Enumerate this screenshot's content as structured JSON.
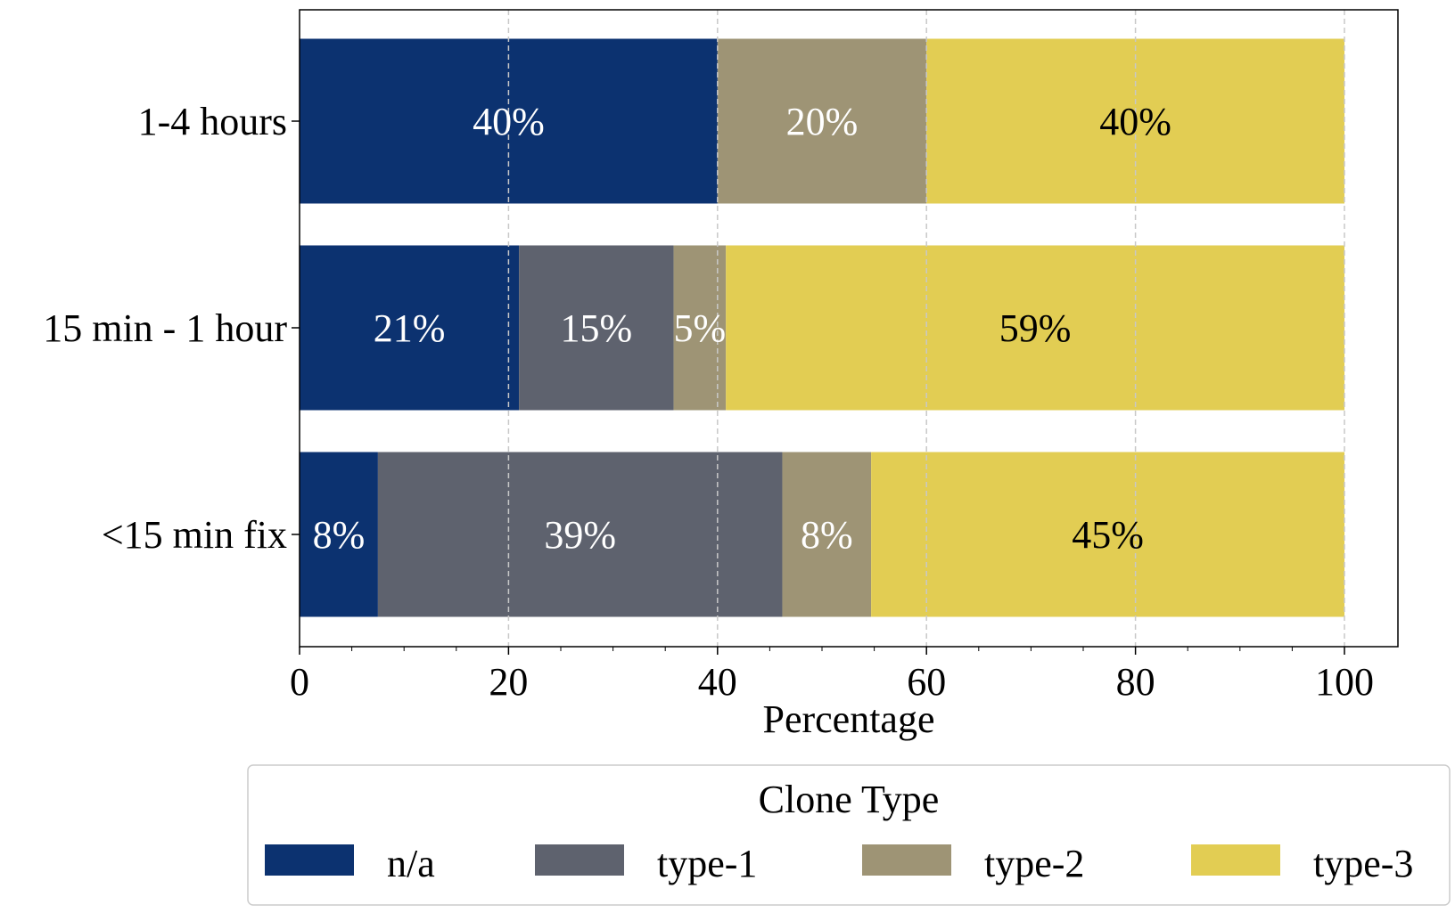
{
  "chart_data": {
    "type": "bar",
    "orientation": "horizontal",
    "stacked": true,
    "categories": [
      "1-4 hours",
      "15 min - 1 hour",
      "<15 min fix"
    ],
    "series": [
      {
        "name": "n/a",
        "color": "#0c3270",
        "label_color": "#ffffff",
        "values": [
          40,
          21,
          7.5
        ],
        "labels": [
          "40%",
          "21%",
          "8%"
        ]
      },
      {
        "name": "type-1",
        "color": "#5e626e",
        "label_color": "#ffffff",
        "values": [
          0,
          14.8,
          38.7
        ],
        "labels": [
          "",
          "15%",
          "39%"
        ]
      },
      {
        "name": "type-2",
        "color": "#9e9475",
        "label_color": "#ffffff",
        "values": [
          20,
          5,
          8.5
        ],
        "labels": [
          "20%",
          "5%",
          "8%"
        ]
      },
      {
        "name": "type-3",
        "color": "#e2cd53",
        "label_color": "#000000",
        "values": [
          40,
          59.2,
          45.3
        ],
        "labels": [
          "40%",
          "59%",
          "45%"
        ]
      }
    ],
    "xlabel": "Percentage",
    "ylabel": "",
    "xlim": [
      0,
      105
    ],
    "xticks": [
      "0",
      "20",
      "40",
      "60",
      "80",
      "100"
    ],
    "grid": "x-dashed",
    "legend": {
      "title": "Clone Type",
      "placement": "bottom-center"
    }
  }
}
